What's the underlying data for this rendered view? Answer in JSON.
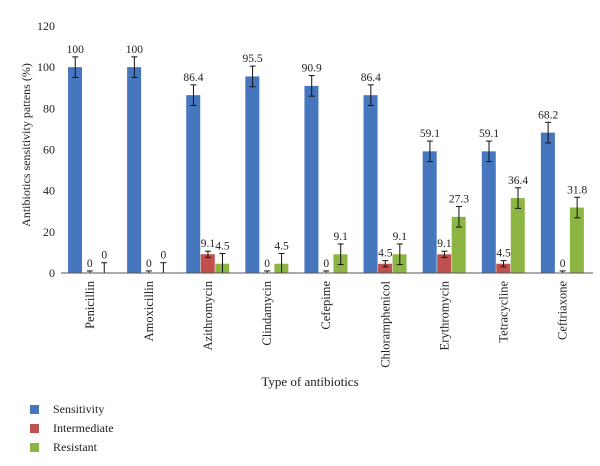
{
  "chart_data": {
    "type": "bar",
    "xlabel": "Type of antibiotics",
    "ylabel": "Antibiotics sensitivity pattens (%)",
    "ylim": [
      0,
      120
    ],
    "yticks": [
      0,
      20,
      40,
      60,
      80,
      100,
      120
    ],
    "grid": false,
    "legend_position": "bottom-left",
    "categories": [
      "Penicillin",
      "Amoxicillin",
      "Azithromycin",
      "Clindamycin",
      "Cefepime",
      "Chloramphenicol",
      "Erythromycin",
      "Tetracycline",
      "Ceftriaxone"
    ],
    "series": [
      {
        "name": "Sensitivity",
        "color": "#4677be",
        "values": [
          100,
          100,
          86.4,
          95.5,
          90.9,
          86.4,
          59.1,
          59.1,
          68.2
        ],
        "labels": [
          "100",
          "100",
          "86.4",
          "95.5",
          "90.9",
          "86.4",
          "59.1",
          "59.1",
          "68.2"
        ],
        "errors": [
          5,
          5,
          5,
          5,
          5,
          5,
          5,
          5,
          5
        ]
      },
      {
        "name": "Intermediate",
        "color": "#c0504d",
        "values": [
          0,
          0,
          9.1,
          0,
          0,
          4.5,
          9.1,
          4.5,
          0
        ],
        "labels": [
          "0",
          "0",
          "9.1",
          "0",
          "0",
          "4.5",
          "9.1",
          "4.5",
          "0"
        ],
        "errors": [
          1,
          1,
          1.5,
          1,
          1,
          1.5,
          1.5,
          1.5,
          1
        ]
      },
      {
        "name": "Resistant",
        "color": "#8db543",
        "values": [
          0,
          0,
          4.5,
          4.5,
          9.1,
          9.1,
          27.3,
          36.4,
          31.8
        ],
        "labels": [
          "0",
          "0",
          "4.5",
          "4.5",
          "9.1",
          "9.1",
          "27.3",
          "36.4",
          "31.8"
        ],
        "errors": [
          5,
          5,
          5,
          5,
          5,
          5,
          5,
          5,
          5
        ]
      }
    ]
  }
}
